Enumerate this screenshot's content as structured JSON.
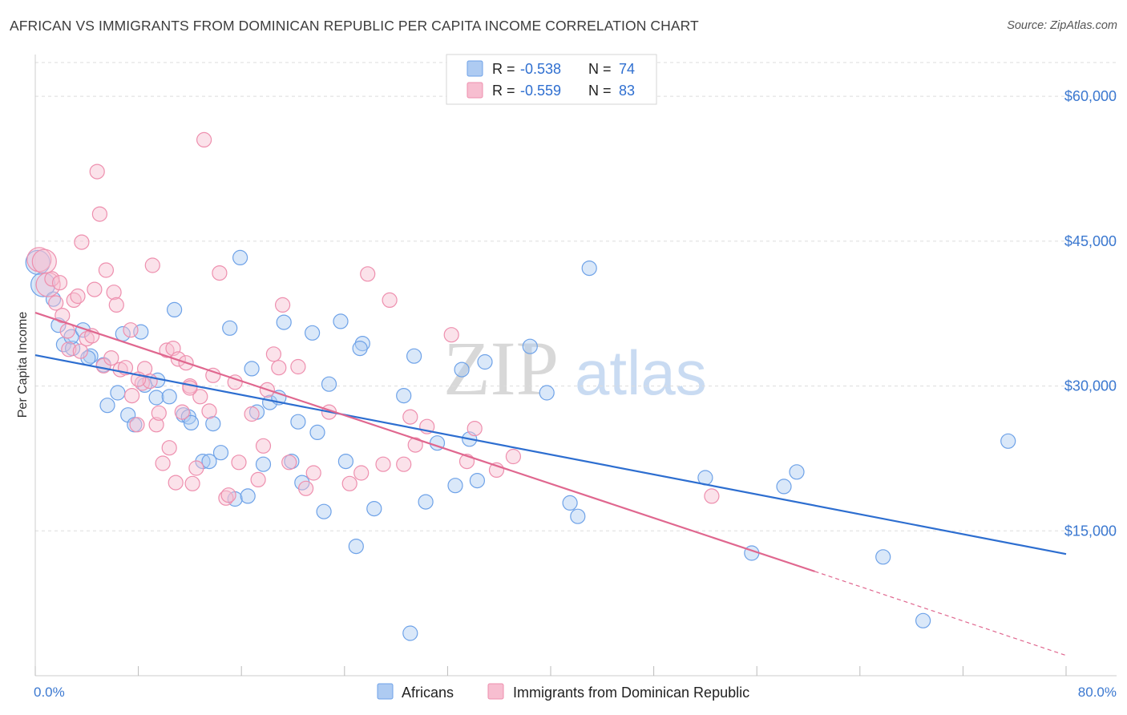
{
  "title": "AFRICAN VS IMMIGRANTS FROM DOMINICAN REPUBLIC PER CAPITA INCOME CORRELATION CHART",
  "source": "Source: ZipAtlas.com",
  "colors": {
    "blue": "#6ea2e8",
    "blue_fill": "#aecbf2",
    "blue_line": "#2d6ed0",
    "pink": "#ee8fae",
    "pink_fill": "#f7bed0",
    "pink_line": "#e0678f",
    "tick_text": "#3b78d0",
    "grid": "#dddddd"
  },
  "chart_data": {
    "type": "scatter",
    "title": "AFRICAN VS IMMIGRANTS FROM DOMINICAN REPUBLIC PER CAPITA INCOME CORRELATION CHART",
    "xlabel": "",
    "ylabel": "Per Capita Income",
    "xlim": [
      0,
      80
    ],
    "ylim": [
      0,
      63500
    ],
    "x_tick_labels": [
      "0.0%",
      "80.0%"
    ],
    "y_ticks": [
      15000,
      30000,
      45000,
      60000
    ],
    "y_tick_labels": [
      "$15,000",
      "$30,000",
      "$45,000",
      "$60,000"
    ],
    "legend": [
      {
        "name": "Africans",
        "R": "-0.538",
        "N": "74"
      },
      {
        "name": "Immigrants from Dominican Republic",
        "R": "-0.559",
        "N": "83"
      }
    ],
    "legend_labels": {
      "r": "R =",
      "n": "N ="
    },
    "watermark": {
      "zip": "ZIP",
      "atlas": "atlas"
    },
    "series": [
      {
        "name": "Africans",
        "color": "#6ea2e8",
        "trend": {
          "x0": 0,
          "y0": 33200,
          "x1": 80,
          "y1": 12600
        },
        "points": [
          [
            0.2,
            42800
          ],
          [
            0.6,
            40500
          ],
          [
            1.4,
            39000
          ],
          [
            1.8,
            36300
          ],
          [
            2.2,
            34300
          ],
          [
            2.9,
            33900
          ],
          [
            2.8,
            35100
          ],
          [
            3.7,
            35800
          ],
          [
            4.3,
            33100
          ],
          [
            4.1,
            32900
          ],
          [
            5.3,
            32200
          ],
          [
            5.6,
            28000
          ],
          [
            6.4,
            29300
          ],
          [
            6.8,
            35400
          ],
          [
            7.2,
            27000
          ],
          [
            7.7,
            26000
          ],
          [
            8.2,
            35600
          ],
          [
            8.5,
            30100
          ],
          [
            9.4,
            28800
          ],
          [
            9.5,
            30600
          ],
          [
            10.4,
            28900
          ],
          [
            10.8,
            37900
          ],
          [
            11.5,
            27000
          ],
          [
            11.9,
            26800
          ],
          [
            12.1,
            26200
          ],
          [
            13.0,
            22200
          ],
          [
            13.5,
            22200
          ],
          [
            13.8,
            26100
          ],
          [
            14.4,
            23100
          ],
          [
            15.1,
            36000
          ],
          [
            15.5,
            18300
          ],
          [
            15.9,
            43300
          ],
          [
            16.5,
            18600
          ],
          [
            16.8,
            31800
          ],
          [
            17.2,
            27300
          ],
          [
            17.7,
            21900
          ],
          [
            18.2,
            28300
          ],
          [
            18.9,
            28800
          ],
          [
            19.3,
            36600
          ],
          [
            19.9,
            22200
          ],
          [
            20.4,
            26300
          ],
          [
            20.7,
            20000
          ],
          [
            21.5,
            35500
          ],
          [
            21.9,
            25200
          ],
          [
            22.4,
            17000
          ],
          [
            22.8,
            30200
          ],
          [
            23.7,
            36700
          ],
          [
            24.1,
            22200
          ],
          [
            24.9,
            13400
          ],
          [
            25.4,
            34400
          ],
          [
            25.2,
            33900
          ],
          [
            26.3,
            17300
          ],
          [
            28.6,
            29000
          ],
          [
            29.1,
            4400
          ],
          [
            29.4,
            33100
          ],
          [
            30.3,
            18000
          ],
          [
            31.2,
            24100
          ],
          [
            32.6,
            19700
          ],
          [
            33.1,
            31700
          ],
          [
            33.7,
            24500
          ],
          [
            34.3,
            20200
          ],
          [
            34.9,
            32500
          ],
          [
            38.4,
            34100
          ],
          [
            39.7,
            29300
          ],
          [
            41.5,
            17900
          ],
          [
            42.1,
            16500
          ],
          [
            43.0,
            42200
          ],
          [
            52.0,
            20500
          ],
          [
            55.6,
            12700
          ],
          [
            58.1,
            19600
          ],
          [
            59.1,
            21100
          ],
          [
            65.8,
            12300
          ],
          [
            68.9,
            5700
          ],
          [
            75.5,
            24300
          ]
        ]
      },
      {
        "name": "Immigrants from Dominican Republic",
        "color": "#ee8fae",
        "trend": {
          "x0": 0,
          "y0": 37600,
          "x1": 60.5,
          "y1": 10800
        },
        "trend_dashed": {
          "x0": 60.5,
          "y0": 10800,
          "x1": 80,
          "y1": 2100
        },
        "points": [
          [
            0.3,
            43100
          ],
          [
            0.7,
            42900
          ],
          [
            1.0,
            40500
          ],
          [
            1.3,
            41100
          ],
          [
            1.6,
            38600
          ],
          [
            1.9,
            40700
          ],
          [
            2.1,
            37300
          ],
          [
            2.5,
            35700
          ],
          [
            2.6,
            33800
          ],
          [
            3.0,
            38900
          ],
          [
            3.3,
            39300
          ],
          [
            3.5,
            33600
          ],
          [
            3.6,
            44900
          ],
          [
            4.0,
            34900
          ],
          [
            4.4,
            35200
          ],
          [
            4.6,
            40000
          ],
          [
            4.8,
            52200
          ],
          [
            5.0,
            47800
          ],
          [
            5.3,
            32100
          ],
          [
            5.5,
            42000
          ],
          [
            5.9,
            32900
          ],
          [
            6.1,
            39700
          ],
          [
            6.3,
            38400
          ],
          [
            6.6,
            31700
          ],
          [
            7.0,
            31900
          ],
          [
            7.4,
            35800
          ],
          [
            7.5,
            29000
          ],
          [
            7.9,
            26000
          ],
          [
            8.3,
            30300
          ],
          [
            8.5,
            31800
          ],
          [
            8.9,
            30500
          ],
          [
            9.1,
            42500
          ],
          [
            9.4,
            26000
          ],
          [
            9.6,
            27200
          ],
          [
            9.9,
            22000
          ],
          [
            10.2,
            33700
          ],
          [
            10.4,
            23600
          ],
          [
            10.7,
            33900
          ],
          [
            10.9,
            20000
          ],
          [
            11.1,
            32800
          ],
          [
            11.4,
            27300
          ],
          [
            11.7,
            32400
          ],
          [
            12.0,
            30000
          ],
          [
            12.2,
            19900
          ],
          [
            12.5,
            21500
          ],
          [
            12.8,
            28900
          ],
          [
            13.1,
            55500
          ],
          [
            13.5,
            27400
          ],
          [
            13.8,
            31100
          ],
          [
            14.3,
            41700
          ],
          [
            14.8,
            18400
          ],
          [
            15.0,
            18700
          ],
          [
            15.5,
            30400
          ],
          [
            15.8,
            22100
          ],
          [
            16.8,
            27100
          ],
          [
            17.3,
            20300
          ],
          [
            17.7,
            23800
          ],
          [
            18.0,
            29600
          ],
          [
            18.5,
            33300
          ],
          [
            18.9,
            31900
          ],
          [
            19.2,
            38400
          ],
          [
            19.7,
            22100
          ],
          [
            20.4,
            32000
          ],
          [
            21.0,
            19400
          ],
          [
            21.6,
            21000
          ],
          [
            22.8,
            27300
          ],
          [
            24.4,
            19900
          ],
          [
            25.3,
            21000
          ],
          [
            25.8,
            41600
          ],
          [
            27.0,
            21900
          ],
          [
            27.5,
            38900
          ],
          [
            28.6,
            21900
          ],
          [
            29.1,
            26800
          ],
          [
            29.5,
            23900
          ],
          [
            30.4,
            25800
          ],
          [
            32.3,
            35300
          ],
          [
            33.5,
            22200
          ],
          [
            34.1,
            25600
          ],
          [
            35.8,
            21300
          ],
          [
            37.1,
            22700
          ],
          [
            52.5,
            18600
          ],
          [
            12.0,
            29800
          ],
          [
            8.0,
            30700
          ]
        ]
      }
    ]
  }
}
